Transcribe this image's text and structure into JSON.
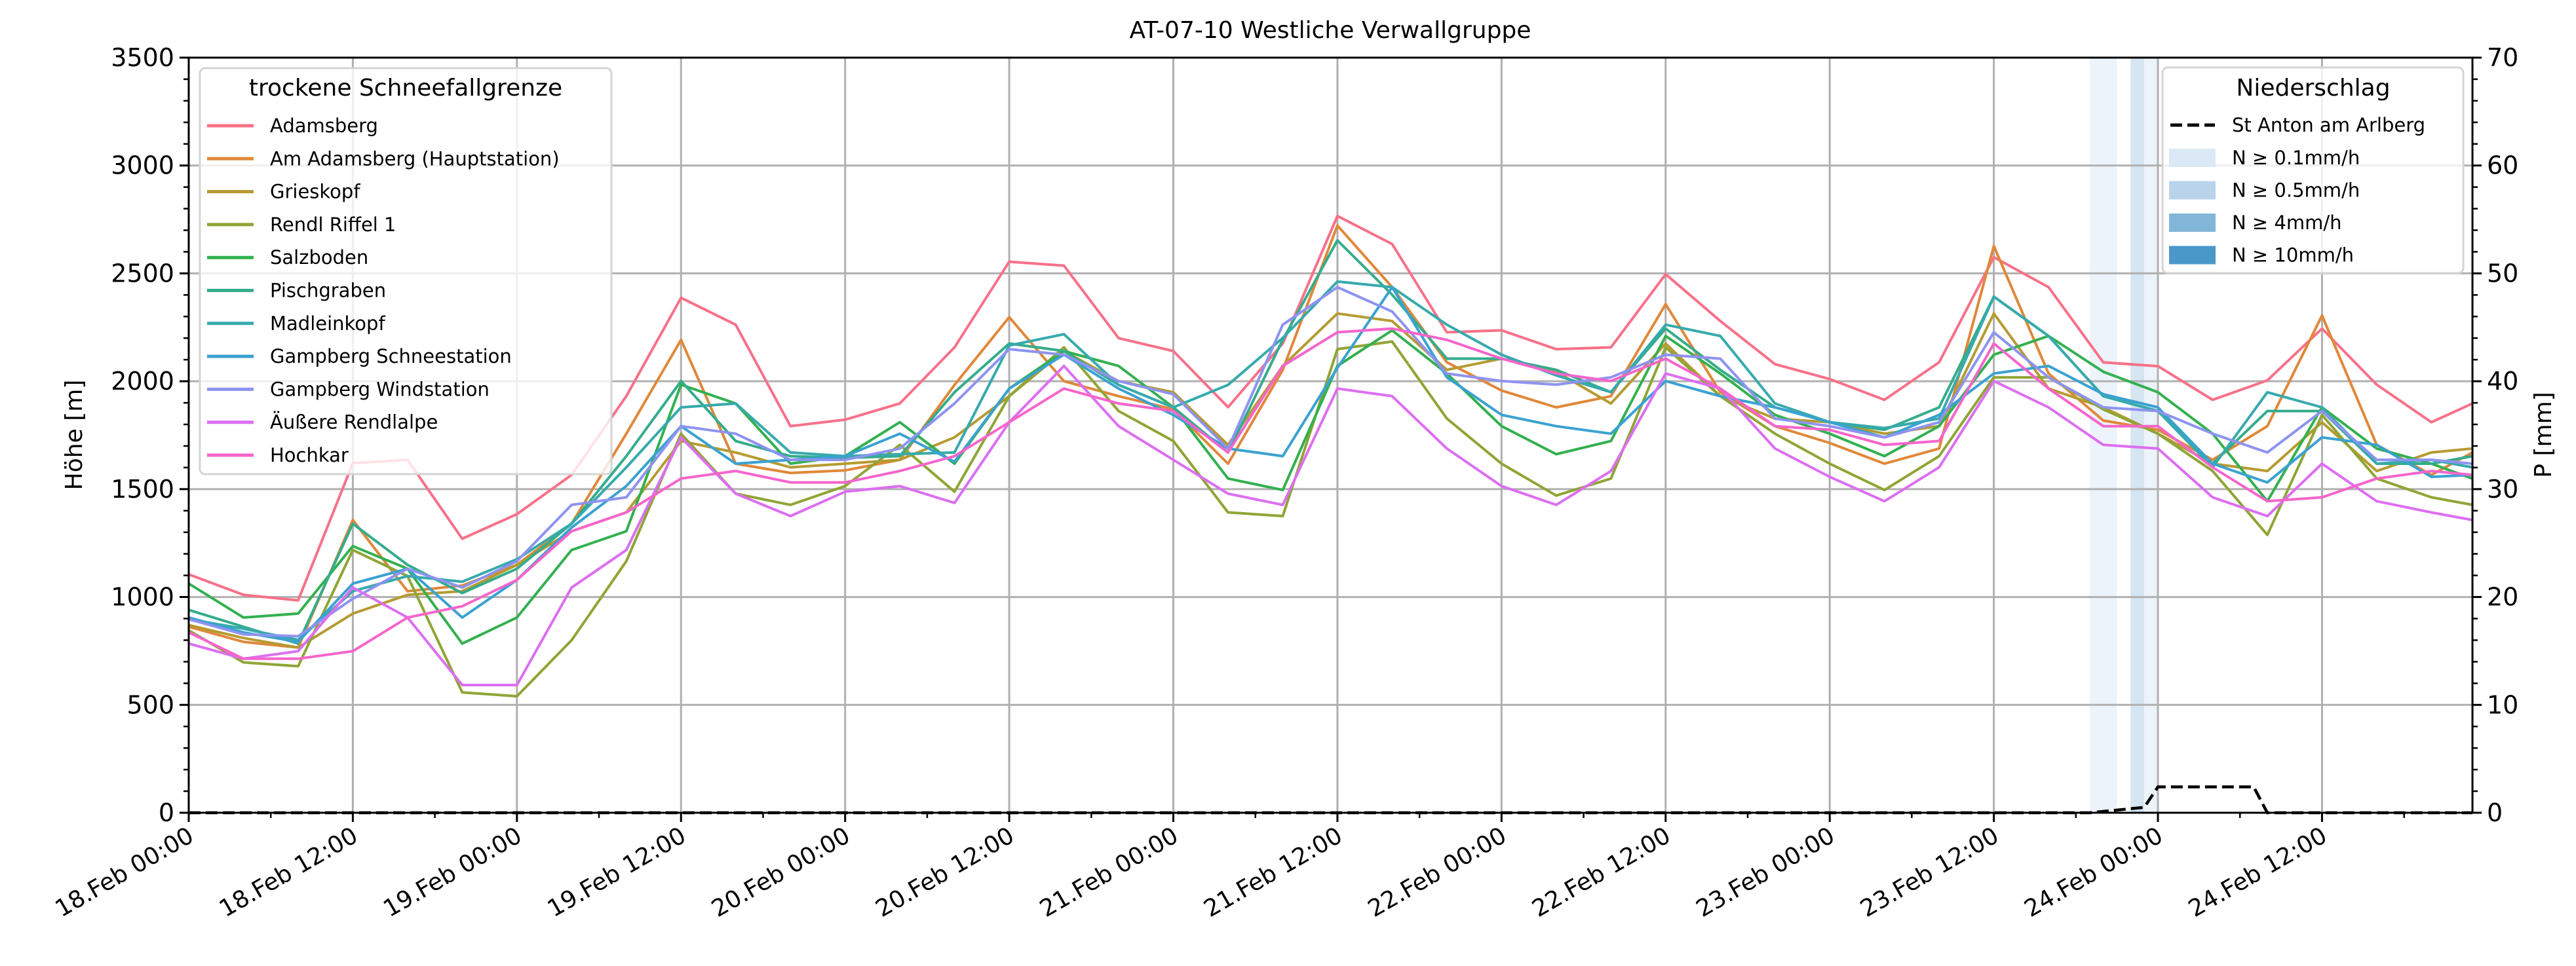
{
  "chart_data": {
    "type": "line",
    "title": "AT-07-10 Westliche Verwallgruppe",
    "ylabel": "Höhe [m]",
    "y2label": "P [mm]",
    "xlabel": "",
    "x_unit": "hours since 18.Feb 00:00",
    "xlim": [
      0,
      167
    ],
    "ylim": [
      0,
      3500
    ],
    "y2lim": [
      0,
      70
    ],
    "grid": true,
    "x_ticks": [
      0,
      12,
      24,
      36,
      48,
      60,
      72,
      84,
      96,
      108,
      120,
      132,
      144,
      156
    ],
    "x_tick_labels": [
      "18.Feb 00:00",
      "18.Feb 12:00",
      "19.Feb 00:00",
      "19.Feb 12:00",
      "20.Feb 00:00",
      "20.Feb 12:00",
      "21.Feb 00:00",
      "21.Feb 12:00",
      "22.Feb 00:00",
      "22.Feb 12:00",
      "23.Feb 00:00",
      "23.Feb 12:00",
      "24.Feb 00:00",
      "24.Feb 12:00"
    ],
    "y_ticks": [
      "0",
      "500",
      "1000",
      "1500",
      "2000",
      "2500",
      "3000",
      "3500"
    ],
    "y2_ticks": [
      "0",
      "10",
      "20",
      "30",
      "40",
      "50",
      "60",
      "70"
    ],
    "x": [
      0,
      4,
      8,
      12,
      16,
      20,
      24,
      28,
      32,
      36,
      40,
      44,
      48,
      52,
      56,
      60,
      64,
      68,
      72,
      76,
      80,
      84,
      88,
      92,
      96,
      100,
      104,
      108,
      112,
      116,
      120,
      124,
      128,
      132,
      136,
      140,
      144,
      148,
      152,
      156,
      160,
      164,
      167
    ],
    "legend_title": "trockene Schneefallgrenze",
    "legend_placement": "top-left",
    "series": [
      {
        "name": "Adamsberg",
        "color": "#f77189",
        "values": [
          1105,
          1010,
          984,
          1620,
          1636,
          1270,
          1384,
          1566,
          1931,
          2387,
          2262,
          1792,
          1822,
          1897,
          2157,
          2554,
          2536,
          2200,
          2140,
          1880,
          2175,
          2766,
          2636,
          2227,
          2236,
          2149,
          2157,
          2496,
          2279,
          2079,
          2010,
          1914,
          2088,
          2575,
          2436,
          2088,
          2070,
          1914,
          2004,
          2244,
          1984,
          1810,
          1897
        ]
      },
      {
        "name": "Am Adamsberg (Hauptstation)",
        "color": "#e0883a",
        "values": [
          862,
          792,
          766,
          1357,
          1027,
          1053,
          1149,
          1340,
          1757,
          2192,
          1618,
          1575,
          1587,
          1636,
          1983,
          2297,
          2000,
          1931,
          1870,
          1618,
          2053,
          2722,
          2436,
          2088,
          1957,
          1879,
          1931,
          2357,
          1949,
          1792,
          1714,
          1618,
          1688,
          2627,
          2036,
          1818,
          1775,
          1636,
          1792,
          2305,
          1705,
          1566,
          1670
        ]
      },
      {
        "name": "Grieskopf",
        "color": "#b59b32",
        "values": [
          870,
          810,
          766,
          923,
          1010,
          1027,
          1149,
          1305,
          1392,
          1723,
          1670,
          1601,
          1618,
          1636,
          1740,
          1931,
          2140,
          2000,
          1949,
          1705,
          2071,
          2314,
          2279,
          2053,
          2105,
          2044,
          1897,
          2175,
          1931,
          1827,
          1810,
          1757,
          1792,
          2314,
          1966,
          1879,
          1757,
          1618,
          1584,
          1810,
          1584,
          1670,
          1688
        ]
      },
      {
        "name": "Rendl Riffel 1",
        "color": "#8fa535",
        "values": [
          845,
          697,
          679,
          1218,
          1097,
          558,
          540,
          800,
          1166,
          1757,
          1479,
          1427,
          1514,
          1705,
          1488,
          1931,
          2157,
          1862,
          1723,
          1392,
          1375,
          2149,
          2184,
          1827,
          1618,
          1470,
          1549,
          2157,
          1931,
          1757,
          1618,
          1496,
          1653,
          2018,
          2018,
          1870,
          1757,
          1584,
          1288,
          1844,
          1549,
          1462,
          1427
        ]
      },
      {
        "name": "Salzboden",
        "color": "#33b050",
        "values": [
          1062,
          905,
          923,
          1236,
          1131,
          784,
          905,
          1218,
          1305,
          1984,
          1897,
          1618,
          1653,
          1810,
          1618,
          1966,
          2140,
          2071,
          1879,
          1549,
          1496,
          2071,
          2236,
          2036,
          1792,
          1662,
          1723,
          2210,
          2036,
          1844,
          1757,
          1653,
          1792,
          2123,
          2210,
          2044,
          1949,
          1757,
          1444,
          1879,
          1688,
          1618,
          1549
        ]
      },
      {
        "name": "Pischgraben",
        "color": "#35ac8c",
        "values": [
          940,
          862,
          784,
          1340,
          1149,
          1018,
          1131,
          1340,
          1653,
          2001,
          1723,
          1653,
          1645,
          1653,
          1949,
          2175,
          2140,
          1983,
          1879,
          1670,
          2192,
          2653,
          2401,
          2105,
          2105,
          2053,
          1949,
          2244,
          2053,
          1879,
          1810,
          1775,
          1879,
          2392,
          2210,
          1931,
          1862,
          1618,
          1862,
          1862,
          1618,
          1618,
          1653
        ]
      },
      {
        "name": "Madleinkopf",
        "color": "#37aaac",
        "values": [
          897,
          853,
          801,
          1027,
          1097,
          1071,
          1175,
          1340,
          1601,
          1879,
          1897,
          1670,
          1653,
          1662,
          1670,
          2166,
          2218,
          1983,
          1879,
          1983,
          2201,
          2462,
          2436,
          2262,
          2123,
          2027,
          1949,
          2262,
          2210,
          1897,
          1810,
          1783,
          1827,
          2392,
          2210,
          1931,
          1862,
          1601,
          1949,
          1879,
          1618,
          1636,
          1601
        ]
      },
      {
        "name": "Gampberg Schneestation",
        "color": "#3aa2d1",
        "values": [
          905,
          836,
          792,
          1062,
          1131,
          905,
          1079,
          1322,
          1514,
          1792,
          1618,
          1636,
          1653,
          1757,
          1627,
          1966,
          2123,
          1966,
          1844,
          1688,
          1653,
          2062,
          2436,
          2018,
          1844,
          1792,
          1757,
          2001,
          1931,
          1879,
          1810,
          1740,
          1844,
          2036,
          2071,
          1940,
          1879,
          1618,
          1531,
          1740,
          1705,
          1557,
          1566
        ]
      },
      {
        "name": "Gampberg Windstation",
        "color": "#8e93f0",
        "values": [
          897,
          827,
          818,
          992,
          1131,
          1044,
          1166,
          1427,
          1462,
          1792,
          1757,
          1636,
          1636,
          1688,
          1897,
          2149,
          2123,
          2001,
          1940,
          1688,
          2262,
          2436,
          2323,
          2036,
          2001,
          1984,
          2018,
          2123,
          2105,
          1827,
          1792,
          1740,
          1810,
          2227,
          2018,
          1879,
          1862,
          1757,
          1670,
          1862,
          1636,
          1636,
          1618
        ]
      },
      {
        "name": "Äußere Rendlalpe",
        "color": "#dc6ff0",
        "values": [
          784,
          714,
          749,
          1044,
          905,
          592,
          592,
          1044,
          1218,
          1740,
          1479,
          1375,
          1488,
          1514,
          1436,
          1810,
          2071,
          1792,
          1636,
          1479,
          1427,
          1966,
          1931,
          1688,
          1514,
          1427,
          1584,
          2036,
          1966,
          1688,
          1557,
          1444,
          1601,
          2001,
          1879,
          1705,
          1688,
          1462,
          1375,
          1618,
          1444,
          1392,
          1357
        ]
      },
      {
        "name": "Hochkar",
        "color": "#f565cc",
        "values": [
          836,
          714,
          714,
          749,
          905,
          957,
          1079,
          1305,
          1392,
          1549,
          1584,
          1531,
          1531,
          1584,
          1653,
          1810,
          1966,
          1897,
          1862,
          1670,
          2071,
          2227,
          2244,
          2192,
          2105,
          2036,
          2001,
          2105,
          1966,
          1792,
          1775,
          1705,
          1723,
          2175,
          1966,
          1792,
          1792,
          1601,
          1444,
          1462,
          1549,
          1584,
          1566
        ]
      }
    ],
    "precip": {
      "legend_title": "Niederschlag",
      "legend_placement": "top-right",
      "station": "St Anton am Arlberg",
      "station_color": "#000000",
      "x": [
        0,
        139,
        143,
        144,
        151,
        152,
        167
      ],
      "values": [
        0,
        0,
        0.5,
        2.4,
        2.4,
        0,
        0
      ],
      "classes": [
        {
          "label": "N ≥ 0.1mm/h",
          "color": "#dbe9f6"
        },
        {
          "label": "N ≥ 0.5mm/h",
          "color": "#b9d4ea"
        },
        {
          "label": "N ≥ 4mm/h",
          "color": "#82b6d9"
        },
        {
          "label": "N ≥ 10mm/h",
          "color": "#4a98c9"
        }
      ],
      "spans": [
        {
          "from": 139,
          "to": 141,
          "class": 0
        },
        {
          "from": 142,
          "to": 143,
          "class": 1
        },
        {
          "from": 143,
          "to": 144,
          "class": 0
        }
      ]
    }
  }
}
